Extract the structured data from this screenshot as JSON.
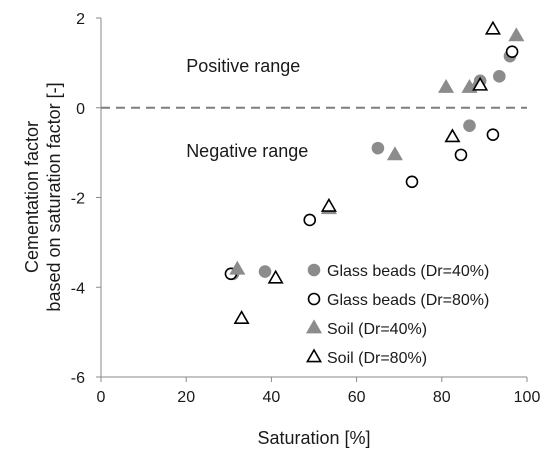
{
  "chart_data": {
    "type": "scatter",
    "xlabel": "Saturation [%]",
    "ylabel_lines": [
      "Cementation factor",
      "based on saturation factor [-]"
    ],
    "xlim": [
      0,
      100
    ],
    "ylim": [
      -6,
      2
    ],
    "x_ticks": [
      0,
      20,
      40,
      60,
      80,
      100
    ],
    "y_ticks": [
      -6,
      -4,
      -2,
      0,
      2
    ],
    "reference_line": {
      "y": 0,
      "style": "dashed"
    },
    "annotations": [
      {
        "text": "Positive range",
        "x": 20,
        "y": 0.8
      },
      {
        "text": "Negative range",
        "x": 20,
        "y": -1.1
      }
    ],
    "legend_position": "lower-right",
    "series": [
      {
        "name": "Glass beads (Dr=40%)",
        "marker": "circle",
        "fill": "#8c8c8c",
        "stroke": "#8c8c8c",
        "points": [
          [
            31,
            -3.7
          ],
          [
            38.5,
            -3.65
          ],
          [
            65,
            -0.9
          ],
          [
            86.5,
            -0.4
          ],
          [
            89,
            0.6
          ],
          [
            93.5,
            0.7
          ],
          [
            96,
            1.15
          ]
        ]
      },
      {
        "name": "Glass beads (Dr=80%)",
        "marker": "circle",
        "fill": "#ffffff",
        "stroke": "#000000",
        "points": [
          [
            30.5,
            -3.7
          ],
          [
            49,
            -2.5
          ],
          [
            73,
            -1.65
          ],
          [
            84.5,
            -1.05
          ],
          [
            92,
            -0.6
          ],
          [
            96.5,
            1.25
          ]
        ]
      },
      {
        "name": "Soil (Dr=40%)",
        "marker": "triangle",
        "fill": "#8c8c8c",
        "stroke": "#8c8c8c",
        "points": [
          [
            32,
            -3.6
          ],
          [
            53.5,
            -2.25
          ],
          [
            69,
            -1.05
          ],
          [
            81,
            0.45
          ],
          [
            86.5,
            0.45
          ],
          [
            88.5,
            0.55
          ],
          [
            97.5,
            1.6
          ]
        ]
      },
      {
        "name": "Soil (Dr=80%)",
        "marker": "triangle",
        "fill": "#ffffff",
        "stroke": "#000000",
        "points": [
          [
            33,
            -4.7
          ],
          [
            41,
            -3.8
          ],
          [
            53.5,
            -2.2
          ],
          [
            82.5,
            -0.65
          ],
          [
            89,
            0.5
          ],
          [
            92,
            1.75
          ]
        ]
      }
    ]
  }
}
